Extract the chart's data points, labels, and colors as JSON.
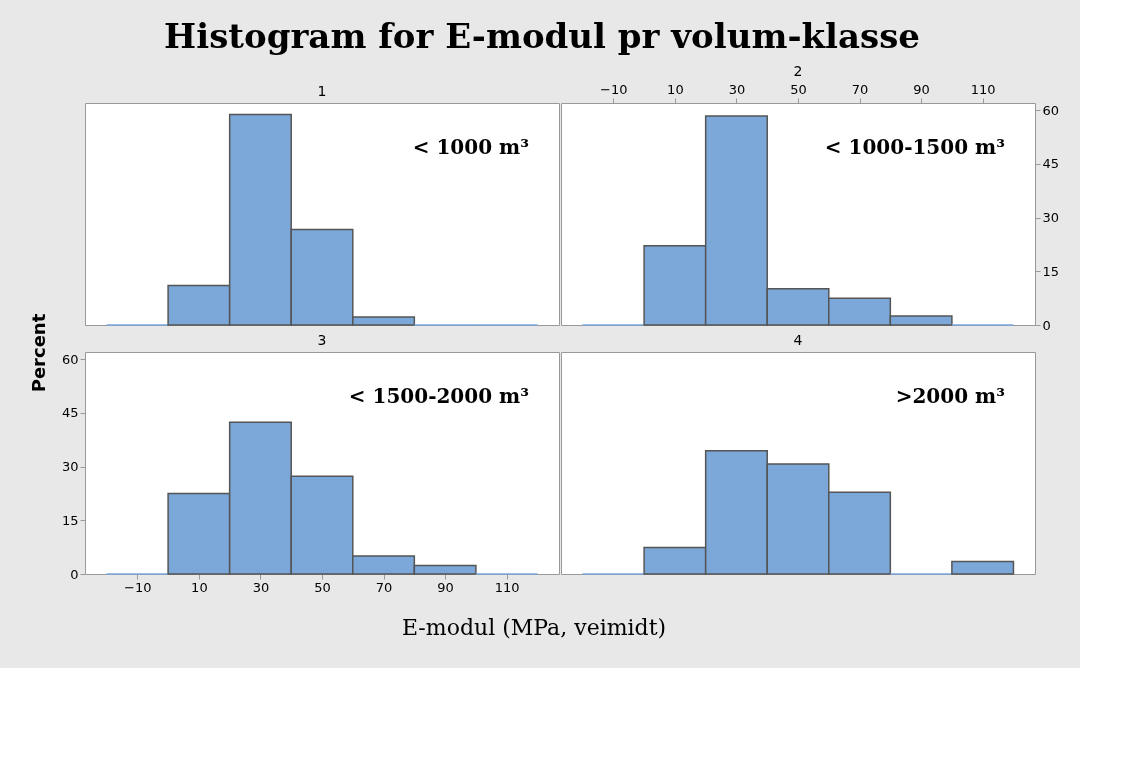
{
  "chart_data": [
    {
      "type": "other",
      "title": "Histogram for E-modul pr volum-klasse",
      "xlabel": "E-modul (MPa, veimidt)",
      "ylabel": "Percent"
    },
    {
      "type": "histogram",
      "title": "1",
      "annotations": [
        "< 1000 m³"
      ],
      "bins": [
        -20,
        0,
        20,
        40,
        60,
        80,
        100,
        120
      ],
      "values": [
        0,
        11,
        58.8,
        26.7,
        2.2,
        0,
        0
      ],
      "color": "#7ba7d9",
      "xlim": [
        -27,
        127
      ],
      "ylim": [
        0,
        62
      ],
      "tick_labels": false
    },
    {
      "type": "histogram",
      "title": "2",
      "annotations": [
        "< 1000-1500 m³"
      ],
      "bins": [
        -20,
        0,
        20,
        40,
        60,
        80,
        100,
        120
      ],
      "values": [
        0,
        22.1,
        58.4,
        10.1,
        7.5,
        2.5,
        0
      ],
      "color": "#7ba7d9",
      "xlim": [
        -27,
        127
      ],
      "xticks": [
        -10,
        10,
        30,
        50,
        70,
        90,
        110
      ],
      "ylim": [
        0,
        62
      ],
      "yticks": [
        0,
        15,
        30,
        45,
        60
      ]
    },
    {
      "type": "histogram",
      "title": "3",
      "annotations": [
        "< 1500-2000 m³"
      ],
      "bins": [
        -20,
        0,
        20,
        40,
        60,
        80,
        100,
        120
      ],
      "values": [
        0,
        22.5,
        42.4,
        27.3,
        5.0,
        2.4,
        0
      ],
      "color": "#7ba7d9",
      "xlim": [
        -27,
        127
      ],
      "xticks": [
        -10,
        10,
        30,
        50,
        70,
        90,
        110
      ],
      "ylim": [
        0,
        62
      ],
      "yticks": [
        0,
        15,
        30,
        45,
        60
      ]
    },
    {
      "type": "histogram",
      "title": "4",
      "annotations": [
        ">2000 m³"
      ],
      "bins": [
        -20,
        0,
        20,
        40,
        60,
        80,
        100,
        120
      ],
      "values": [
        0,
        7.4,
        34.4,
        30.7,
        22.8,
        0,
        3.5
      ],
      "color": "#7ba7d9",
      "xlim": [
        -27,
        127
      ],
      "ylim": [
        0,
        62
      ],
      "tick_labels": false
    }
  ]
}
